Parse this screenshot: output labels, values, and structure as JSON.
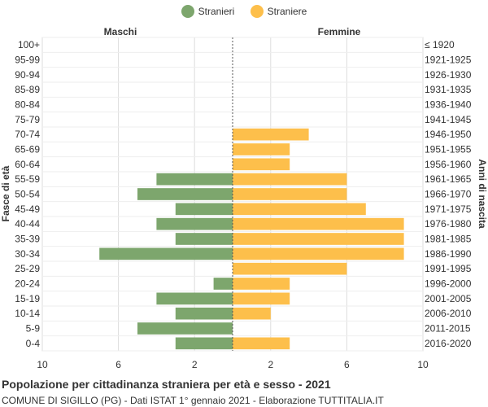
{
  "legend": {
    "male_label": "Stranieri",
    "female_label": "Straniere"
  },
  "colors": {
    "male": "#7da66d",
    "female": "#fdbf4b"
  },
  "headers": {
    "left": "Maschi",
    "right": "Femmine"
  },
  "axes": {
    "y_left_label": "Fasce di età",
    "y_right_label": "Anni di nascita"
  },
  "footer": {
    "title": "Popolazione per cittadinanza straniera per età e sesso - 2021",
    "subtitle": "COMUNE DI SIGILLO (PG) - Dati ISTAT 1° gennaio 2021 - Elaborazione TUTTITALIA.IT"
  },
  "chart_data": {
    "type": "bar",
    "orientation": "horizontal-population-pyramid",
    "categories": [
      "100+",
      "95-99",
      "90-94",
      "85-89",
      "80-84",
      "75-79",
      "70-74",
      "65-69",
      "60-64",
      "55-59",
      "50-54",
      "45-49",
      "40-44",
      "35-39",
      "30-34",
      "25-29",
      "20-24",
      "15-19",
      "10-14",
      "5-9",
      "0-4"
    ],
    "birth_years": [
      "≤ 1920",
      "1921-1925",
      "1926-1930",
      "1931-1935",
      "1936-1940",
      "1941-1945",
      "1946-1950",
      "1951-1955",
      "1956-1960",
      "1961-1965",
      "1966-1970",
      "1971-1975",
      "1976-1980",
      "1981-1985",
      "1986-1990",
      "1991-1995",
      "1996-2000",
      "2001-2005",
      "2006-2010",
      "2011-2015",
      "2016-2020"
    ],
    "series": [
      {
        "name": "Stranieri",
        "values": [
          0,
          0,
          0,
          0,
          0,
          0,
          0,
          0,
          0,
          4,
          5,
          3,
          4,
          3,
          7,
          0,
          1,
          4,
          3,
          5,
          3
        ]
      },
      {
        "name": "Straniere",
        "values": [
          0,
          0,
          0,
          0,
          0,
          0,
          4,
          3,
          3,
          6,
          6,
          7,
          9,
          9,
          9,
          6,
          3,
          3,
          2,
          0,
          3
        ]
      }
    ],
    "x_ticks": [
      "10",
      "6",
      "2",
      "2",
      "6",
      "10"
    ],
    "xlim": [
      -10,
      10
    ],
    "grid": true
  }
}
